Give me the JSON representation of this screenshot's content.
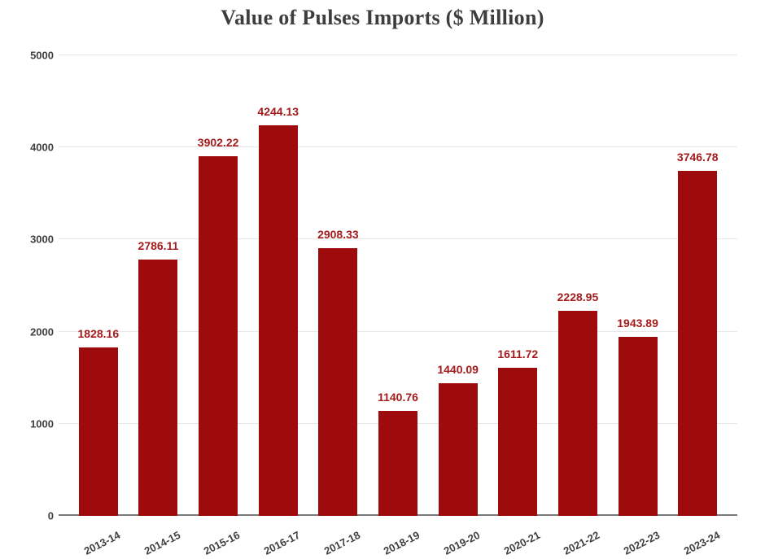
{
  "chart_data": {
    "type": "bar",
    "title": "Value of Pulses Imports ($ Million)",
    "categories": [
      "2013-14",
      "2014-15",
      "2015-16",
      "2016-17",
      "2017-18",
      "2018-19",
      "2019-20",
      "2020-21",
      "2021-22",
      "2022-23",
      "2023-24"
    ],
    "values": [
      1828.16,
      2786.11,
      3902.22,
      4244.13,
      2908.33,
      1140.76,
      1440.09,
      1611.72,
      2228.95,
      1943.89,
      3746.78
    ],
    "value_labels": [
      "1828.16",
      "2786.11",
      "3902.22",
      "4244.13",
      "2908.33",
      "1140.76",
      "1440.09",
      "1611.72",
      "2228.95",
      "1943.89",
      "3746.78"
    ],
    "xlabel": "",
    "ylabel": "",
    "ylim": [
      0,
      5000
    ],
    "yticks": [
      0,
      1000,
      2000,
      3000,
      4000,
      5000
    ],
    "grid": "horizontal",
    "legend": "none",
    "colors": {
      "bar": "#9E0B0C",
      "value_label": "#A31B1B",
      "title": "#3d3d3d",
      "axis_tick": "#404040",
      "x_tick": "#3f3f3f",
      "gridline": "#e7e7e7",
      "axis_line": "#7a7a7a",
      "background": "#ffffff"
    }
  }
}
